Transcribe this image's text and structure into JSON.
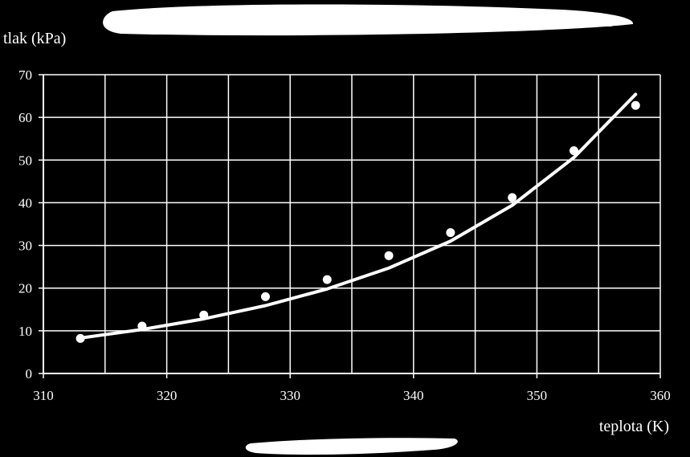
{
  "colors": {
    "background": "#000000",
    "foreground": "#ffffff"
  },
  "chart_data": {
    "type": "scatter",
    "ylabel": "tlak (kPa)",
    "xlabel": "teplota (K)",
    "xlim": [
      310,
      360
    ],
    "ylim": [
      0,
      70
    ],
    "x_ticks": [
      310,
      320,
      330,
      340,
      350,
      360
    ],
    "y_ticks": [
      0,
      10,
      20,
      30,
      40,
      50,
      60,
      70
    ],
    "x_grid_step": 5,
    "grid": true,
    "series": [
      {
        "points": [
          {
            "x": 313,
            "y": 8.2
          },
          {
            "x": 318,
            "y": 11.1
          },
          {
            "x": 323,
            "y": 13.7
          },
          {
            "x": 328,
            "y": 18.0
          },
          {
            "x": 333,
            "y": 22.0
          },
          {
            "x": 338,
            "y": 27.6
          },
          {
            "x": 343,
            "y": 33.0
          },
          {
            "x": 348,
            "y": 41.2
          },
          {
            "x": 353,
            "y": 52.2
          },
          {
            "x": 358,
            "y": 62.8
          }
        ]
      }
    ],
    "trendline": {
      "type": "exponential",
      "x_range": [
        313,
        358
      ],
      "points": [
        {
          "x": 313,
          "y": 8.3
        },
        {
          "x": 318,
          "y": 10.3
        },
        {
          "x": 323,
          "y": 12.8
        },
        {
          "x": 328,
          "y": 15.9
        },
        {
          "x": 333,
          "y": 19.8
        },
        {
          "x": 338,
          "y": 24.7
        },
        {
          "x": 343,
          "y": 31.0
        },
        {
          "x": 348,
          "y": 39.4
        },
        {
          "x": 353,
          "y": 50.6
        },
        {
          "x": 358,
          "y": 65.4
        }
      ]
    }
  }
}
